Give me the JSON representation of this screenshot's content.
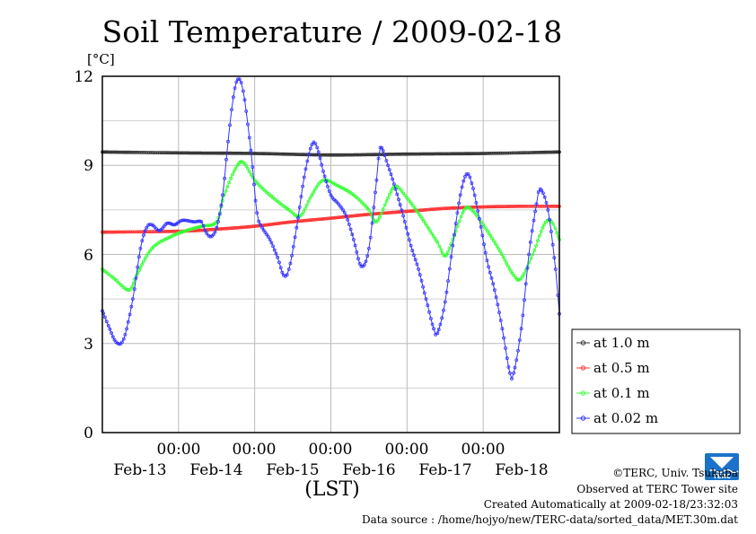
{
  "chart_data": {
    "type": "line",
    "title": "Soil Temperature / 2009-02-18",
    "ylabel_unit": "[°C]",
    "xlabel": "(LST)",
    "ylim": [
      0,
      12
    ],
    "yticks": [
      "0",
      "3",
      "6",
      "9",
      "12"
    ],
    "xlim": [
      0,
      6
    ],
    "xticks": [
      {
        "x": 1,
        "time": "00:00"
      },
      {
        "x": 2,
        "time": "00:00"
      },
      {
        "x": 3,
        "time": "00:00"
      },
      {
        "x": 4,
        "time": "00:00"
      },
      {
        "x": 5,
        "time": "00:00"
      }
    ],
    "xdates": [
      {
        "x": 0.5,
        "label": "Feb-13"
      },
      {
        "x": 1.5,
        "label": "Feb-14"
      },
      {
        "x": 2.5,
        "label": "Feb-15"
      },
      {
        "x": 3.5,
        "label": "Feb-16"
      },
      {
        "x": 4.5,
        "label": "Feb-17"
      },
      {
        "x": 5.5,
        "label": "Feb-18"
      }
    ],
    "grid": true,
    "legend_position": "right",
    "series": [
      {
        "name": "at 1.0 m",
        "color": "#333333",
        "points": [
          [
            0,
            9.45
          ],
          [
            1,
            9.42
          ],
          [
            2,
            9.4
          ],
          [
            3,
            9.35
          ],
          [
            4,
            9.38
          ],
          [
            5,
            9.4
          ],
          [
            6,
            9.45
          ]
        ]
      },
      {
        "name": "at 0.5 m",
        "color": "#ff3333",
        "points": [
          [
            0,
            6.75
          ],
          [
            1,
            6.78
          ],
          [
            1.5,
            6.85
          ],
          [
            2,
            6.95
          ],
          [
            2.5,
            7.1
          ],
          [
            3,
            7.22
          ],
          [
            3.5,
            7.35
          ],
          [
            4,
            7.45
          ],
          [
            4.5,
            7.55
          ],
          [
            5,
            7.6
          ],
          [
            5.5,
            7.62
          ],
          [
            6,
            7.62
          ]
        ]
      },
      {
        "name": "at 0.1 m",
        "color": "#33ff33",
        "points": [
          [
            0,
            5.5
          ],
          [
            0.15,
            5.2
          ],
          [
            0.35,
            4.8
          ],
          [
            0.45,
            5.3
          ],
          [
            0.65,
            6.2
          ],
          [
            0.9,
            6.6
          ],
          [
            1.1,
            6.8
          ],
          [
            1.3,
            6.95
          ],
          [
            1.5,
            7.1
          ],
          [
            1.6,
            8.0
          ],
          [
            1.75,
            8.9
          ],
          [
            1.85,
            9.1
          ],
          [
            2,
            8.5
          ],
          [
            2.2,
            8.0
          ],
          [
            2.45,
            7.5
          ],
          [
            2.6,
            7.3
          ],
          [
            2.75,
            8.0
          ],
          [
            2.9,
            8.5
          ],
          [
            3.1,
            8.3
          ],
          [
            3.3,
            8.0
          ],
          [
            3.5,
            7.5
          ],
          [
            3.6,
            7.1
          ],
          [
            3.75,
            7.9
          ],
          [
            3.85,
            8.3
          ],
          [
            4,
            7.9
          ],
          [
            4.2,
            7.2
          ],
          [
            4.4,
            6.4
          ],
          [
            4.5,
            5.95
          ],
          [
            4.6,
            6.5
          ],
          [
            4.75,
            7.5
          ],
          [
            4.85,
            7.5
          ],
          [
            5,
            7.0
          ],
          [
            5.2,
            6.2
          ],
          [
            5.4,
            5.3
          ],
          [
            5.5,
            5.2
          ],
          [
            5.65,
            6.0
          ],
          [
            5.8,
            7.0
          ],
          [
            5.9,
            7.1
          ],
          [
            6,
            6.5
          ]
        ]
      },
      {
        "name": "at 0.02 m",
        "color": "#3333ff",
        "points": [
          [
            0,
            4.1
          ],
          [
            0.08,
            3.6
          ],
          [
            0.18,
            3.05
          ],
          [
            0.28,
            3.15
          ],
          [
            0.4,
            4.5
          ],
          [
            0.5,
            6.2
          ],
          [
            0.58,
            6.9
          ],
          [
            0.65,
            7.0
          ],
          [
            0.75,
            6.8
          ],
          [
            0.85,
            7.05
          ],
          [
            0.95,
            7.0
          ],
          [
            1.05,
            7.15
          ],
          [
            1.2,
            7.1
          ],
          [
            1.3,
            7.1
          ],
          [
            1.35,
            6.8
          ],
          [
            1.42,
            6.6
          ],
          [
            1.5,
            6.9
          ],
          [
            1.58,
            8.0
          ],
          [
            1.65,
            9.8
          ],
          [
            1.72,
            11.3
          ],
          [
            1.78,
            11.9
          ],
          [
            1.85,
            11.5
          ],
          [
            1.95,
            9.5
          ],
          [
            2.03,
            7.4
          ],
          [
            2.1,
            6.9
          ],
          [
            2.2,
            6.5
          ],
          [
            2.3,
            5.9
          ],
          [
            2.38,
            5.3
          ],
          [
            2.45,
            5.5
          ],
          [
            2.55,
            6.9
          ],
          [
            2.65,
            8.6
          ],
          [
            2.75,
            9.7
          ],
          [
            2.82,
            9.6
          ],
          [
            2.9,
            8.8
          ],
          [
            3.0,
            8.0
          ],
          [
            3.1,
            7.7
          ],
          [
            3.2,
            7.3
          ],
          [
            3.3,
            6.5
          ],
          [
            3.4,
            5.6
          ],
          [
            3.5,
            6.2
          ],
          [
            3.6,
            8.5
          ],
          [
            3.65,
            9.6
          ],
          [
            3.75,
            9.0
          ],
          [
            3.85,
            8.2
          ],
          [
            3.95,
            7.3
          ],
          [
            4.05,
            6.3
          ],
          [
            4.15,
            5.5
          ],
          [
            4.25,
            4.5
          ],
          [
            4.35,
            3.5
          ],
          [
            4.4,
            3.35
          ],
          [
            4.5,
            4.4
          ],
          [
            4.6,
            6.3
          ],
          [
            4.7,
            8.0
          ],
          [
            4.78,
            8.7
          ],
          [
            4.85,
            8.4
          ],
          [
            4.95,
            7.2
          ],
          [
            5.05,
            5.8
          ],
          [
            5.15,
            4.8
          ],
          [
            5.25,
            3.5
          ],
          [
            5.35,
            2.0
          ],
          [
            5.4,
            2.0
          ],
          [
            5.5,
            3.5
          ],
          [
            5.6,
            6.0
          ],
          [
            5.7,
            7.7
          ],
          [
            5.75,
            8.2
          ],
          [
            5.85,
            7.5
          ],
          [
            5.95,
            5.5
          ],
          [
            6,
            4.0
          ]
        ]
      }
    ]
  },
  "credits": {
    "line1": "©TERC, Univ. Tsukuba",
    "line2": "Observed at TERC Tower site",
    "line3": "Created Automatically at 2009-02-18/23:32:03",
    "line4": "Data source : /home/hojyo/new/TERC-data/sorted_data/MET.30m.dat"
  },
  "logo": {
    "text": "TERC",
    "color": "#1a73c8"
  }
}
